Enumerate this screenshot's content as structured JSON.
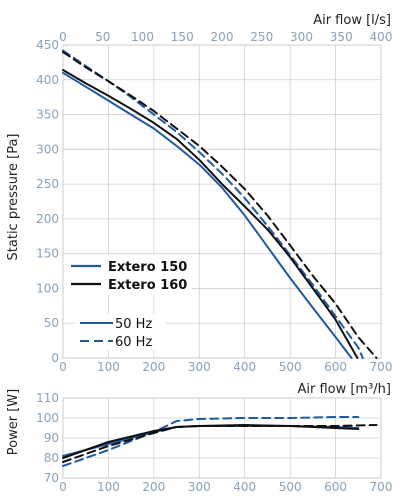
{
  "chart_data": [
    {
      "type": "line",
      "xlabel_bottom": "Air flow [m³/h]",
      "xlabel_top": "Air flow [l/s]",
      "ylabel": "Static pressure [Pa]",
      "xlim": [
        0,
        700
      ],
      "xlim_top": [
        0,
        400
      ],
      "ylim": [
        0,
        450
      ],
      "x_ticks": [
        "0",
        "100",
        "200",
        "300",
        "400",
        "500",
        "600",
        "700"
      ],
      "x_top_ticks": [
        "0",
        "50",
        "100",
        "150",
        "200",
        "250",
        "300",
        "350",
        "400"
      ],
      "y_ticks": [
        "0",
        "50",
        "100",
        "150",
        "200",
        "250",
        "300",
        "350",
        "400",
        "450"
      ],
      "grid": true,
      "legend_models": [
        {
          "label": "Extero 150",
          "color": "#1f5aa0"
        },
        {
          "label": "Extero 160",
          "color": "#111111"
        }
      ],
      "legend_freq": [
        {
          "label": "50 Hz",
          "dash": "solid"
        },
        {
          "label": "60 Hz",
          "dash": "dashed"
        }
      ],
      "series": [
        {
          "name": "Extero 150 50 Hz",
          "color": "#1f5aa0",
          "dash": "solid",
          "x": [
            0,
            50,
            100,
            150,
            200,
            250,
            300,
            350,
            400,
            450,
            500,
            550,
            600,
            635
          ],
          "y": [
            410,
            390,
            370,
            350,
            330,
            305,
            278,
            245,
            205,
            160,
            115,
            72,
            30,
            0
          ]
        },
        {
          "name": "Extero 150 60 Hz",
          "color": "#1f5aa0",
          "dash": "dashed",
          "x": [
            0,
            50,
            100,
            150,
            200,
            250,
            300,
            350,
            400,
            450,
            500,
            550,
            600,
            650,
            660
          ],
          "y": [
            442,
            420,
            398,
            375,
            350,
            325,
            296,
            265,
            230,
            190,
            148,
            105,
            60,
            15,
            0
          ]
        },
        {
          "name": "Extero 160 50 Hz",
          "color": "#111111",
          "dash": "solid",
          "x": [
            0,
            50,
            100,
            150,
            200,
            250,
            300,
            350,
            400,
            450,
            500,
            550,
            600,
            648
          ],
          "y": [
            414,
            395,
            377,
            358,
            338,
            315,
            285,
            250,
            218,
            185,
            145,
            100,
            55,
            0
          ]
        },
        {
          "name": "Extero 160 60 Hz",
          "color": "#111111",
          "dash": "dashed",
          "x": [
            0,
            50,
            100,
            150,
            200,
            250,
            300,
            350,
            400,
            450,
            500,
            550,
            600,
            650,
            690
          ],
          "y": [
            440,
            418,
            398,
            377,
            355,
            330,
            305,
            275,
            243,
            205,
            162,
            118,
            78,
            30,
            0
          ]
        }
      ]
    },
    {
      "type": "line",
      "ylabel": "Power [W]",
      "xlabel": "",
      "xlim": [
        0,
        700
      ],
      "ylim": [
        70,
        110
      ],
      "x_ticks": [
        "0",
        "100",
        "200",
        "300",
        "400",
        "500",
        "600",
        "700"
      ],
      "y_ticks": [
        "70",
        "80",
        "90",
        "100",
        "110"
      ],
      "grid": true,
      "series": [
        {
          "name": "Extero 150 50 Hz",
          "color": "#1f5aa0",
          "dash": "solid",
          "x": [
            0,
            100,
            200,
            250,
            300,
            400,
            500,
            600,
            650
          ],
          "y": [
            81,
            87,
            93,
            95.5,
            96,
            96,
            96,
            95.5,
            95
          ]
        },
        {
          "name": "Extero 150 60 Hz",
          "color": "#1f5aa0",
          "dash": "dashed",
          "x": [
            0,
            100,
            200,
            250,
            300,
            400,
            500,
            600,
            650
          ],
          "y": [
            76,
            84,
            93,
            98.5,
            99.5,
            100,
            100,
            100.5,
            100.5
          ]
        },
        {
          "name": "Extero 160 50 Hz",
          "color": "#111111",
          "dash": "solid",
          "x": [
            0,
            100,
            200,
            250,
            300,
            400,
            500,
            600,
            650
          ],
          "y": [
            80,
            88,
            93.5,
            95.5,
            96,
            96.5,
            96,
            95,
            94.5
          ]
        },
        {
          "name": "Extero 160 60 Hz",
          "color": "#111111",
          "dash": "dashed",
          "x": [
            0,
            100,
            200,
            250,
            300,
            400,
            500,
            600,
            690
          ],
          "y": [
            78,
            86,
            92.5,
            95.5,
            96,
            96,
            96,
            96,
            96.5
          ]
        }
      ]
    }
  ]
}
